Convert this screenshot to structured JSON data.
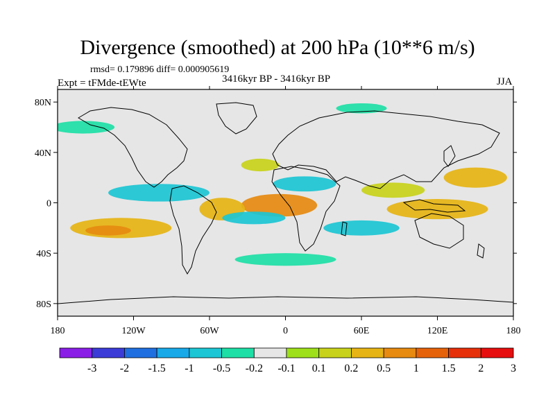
{
  "header": {
    "title": "Divergence (smoothed) at 200 hPa (10**6 m/s)",
    "stats": "rmsd= 0.179896 diff= 0.000905619",
    "experiment": "Expt = tFMde-tEWte",
    "period": "3416kyr BP - 3416kyr BP",
    "season": "JJA"
  },
  "axes": {
    "x_ticks": [
      {
        "value": -180,
        "label": "180"
      },
      {
        "value": -120,
        "label": "120W"
      },
      {
        "value": -60,
        "label": "60W"
      },
      {
        "value": 0,
        "label": "0"
      },
      {
        "value": 60,
        "label": "60E"
      },
      {
        "value": 120,
        "label": "120E"
      },
      {
        "value": 180,
        "label": "180"
      }
    ],
    "y_ticks": [
      {
        "value": 80,
        "label": "80N"
      },
      {
        "value": 40,
        "label": "40N"
      },
      {
        "value": 0,
        "label": "0"
      },
      {
        "value": -40,
        "label": "40S"
      },
      {
        "value": -80,
        "label": "80S"
      }
    ],
    "lon_range": [
      -180,
      180
    ],
    "lat_range": [
      -90,
      90
    ]
  },
  "colorbar": {
    "colors": [
      "#8a1ee6",
      "#3b3bd8",
      "#1f6fe0",
      "#18a9e8",
      "#1cc6d4",
      "#1edfa6",
      "#e6e6e6",
      "#9ee01a",
      "#c8d21a",
      "#e6b414",
      "#e68a10",
      "#e6620a",
      "#e6300a",
      "#e60e0e"
    ],
    "labels": [
      "-3",
      "-2",
      "-1.5",
      "-1",
      "-0.5",
      "-0.2",
      "-0.1",
      "0.1",
      "0.2",
      "0.5",
      "1",
      "1.5",
      "2",
      "3"
    ]
  },
  "chart_data": {
    "type": "heatmap",
    "title": "Divergence (smoothed) at 200 hPa (10**6 m/s)",
    "variable": "200 hPa divergence difference",
    "units": "10**6 m/s",
    "lon_range": [
      -180,
      180
    ],
    "lat_range": [
      -90,
      90
    ],
    "levels": [
      -3,
      -2,
      -1.5,
      -1,
      -0.5,
      -0.2,
      -0.1,
      0.1,
      0.2,
      0.5,
      1,
      1.5,
      2,
      3
    ],
    "regions": [
      {
        "name": "tropical-atlantic-max",
        "lon": -5,
        "lat": -2,
        "rx": 30,
        "ry": 9,
        "value": 1.0
      },
      {
        "name": "south-america-east-pos",
        "lon": -50,
        "lat": -5,
        "rx": 18,
        "ry": 9,
        "value": 0.5
      },
      {
        "name": "south-pacific-pos",
        "lon": -130,
        "lat": -20,
        "rx": 40,
        "ry": 8,
        "value": 0.5
      },
      {
        "name": "south-pacific-core",
        "lon": -140,
        "lat": -22,
        "rx": 18,
        "ry": 4,
        "value": 1.0
      },
      {
        "name": "maritime-continent-pos",
        "lon": 120,
        "lat": -5,
        "rx": 40,
        "ry": 8,
        "value": 0.5
      },
      {
        "name": "west-pacific-pos",
        "lon": 150,
        "lat": 20,
        "rx": 25,
        "ry": 8,
        "value": 0.5
      },
      {
        "name": "north-atlantic-pos",
        "lon": -20,
        "lat": 30,
        "rx": 15,
        "ry": 5,
        "value": 0.2
      },
      {
        "name": "indian-ocean-pos",
        "lon": 85,
        "lat": 10,
        "rx": 25,
        "ry": 6,
        "value": 0.2
      },
      {
        "name": "east-pacific-neg",
        "lon": -100,
        "lat": 8,
        "rx": 40,
        "ry": 7,
        "value": -0.5
      },
      {
        "name": "africa-neg",
        "lon": 15,
        "lat": 15,
        "rx": 25,
        "ry": 6,
        "value": -0.5
      },
      {
        "name": "atlantic-south-neg",
        "lon": -25,
        "lat": -12,
        "rx": 25,
        "ry": 5,
        "value": -0.5
      },
      {
        "name": "indian-south-neg",
        "lon": 60,
        "lat": -20,
        "rx": 30,
        "ry": 6,
        "value": -0.5
      },
      {
        "name": "north-pacific-neg",
        "lon": -160,
        "lat": 60,
        "rx": 25,
        "ry": 5,
        "value": -0.2
      },
      {
        "name": "southern-ocean-neg",
        "lon": 0,
        "lat": -45,
        "rx": 40,
        "ry": 5,
        "value": -0.2
      },
      {
        "name": "arctic-neg",
        "lon": 60,
        "lat": 75,
        "rx": 20,
        "ry": 4,
        "value": -0.2
      }
    ]
  }
}
